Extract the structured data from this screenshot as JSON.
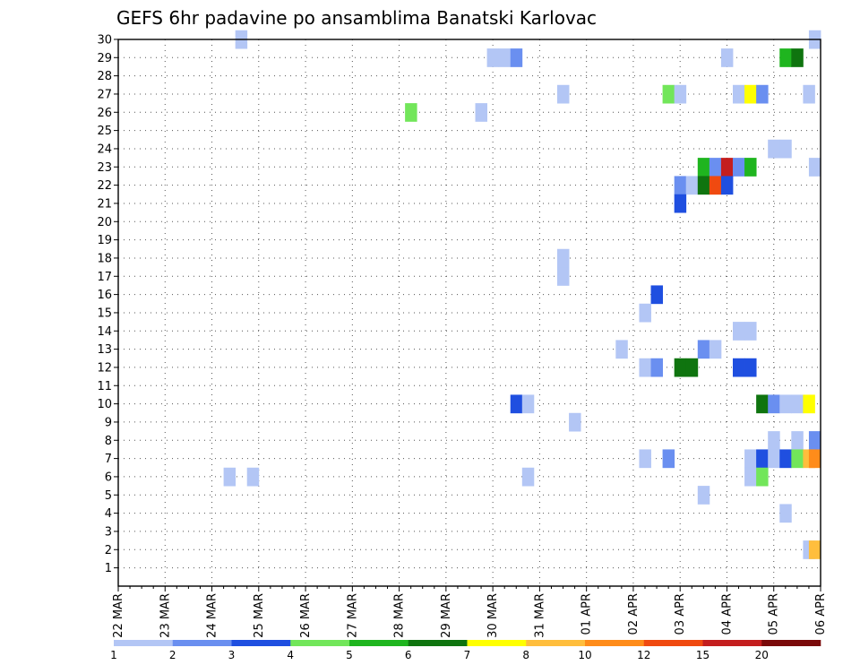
{
  "chart_data": {
    "type": "heatmap",
    "title": "GEFS 6hr padavine po ansamblima Banatski Karlovac",
    "members": [
      1,
      2,
      3,
      4,
      5,
      6,
      7,
      8,
      9,
      10,
      11,
      12,
      13,
      14,
      15,
      16,
      17,
      18,
      19,
      20,
      21,
      22,
      23,
      24,
      25,
      26,
      27,
      28,
      29,
      30
    ],
    "x_tick_labels": [
      "22 MAR",
      "23 MAR",
      "24 MAR",
      "25 MAR",
      "26 MAR",
      "27 MAR",
      "28 MAR",
      "29 MAR",
      "30 MAR",
      "31 MAR",
      "01 APR",
      "02 APR",
      "03 APR",
      "04 APR",
      "05 APR",
      "06 APR"
    ],
    "x_range_steps": [
      0,
      60
    ],
    "steps_per_day": 4,
    "legend_ticks": [
      "1",
      "2",
      "3",
      "4",
      "5",
      "6",
      "7",
      "8",
      "10",
      "12",
      "15",
      "20"
    ],
    "legend_colors": [
      "#b3c6f5",
      "#6a8ff0",
      "#1f4fe0",
      "#72e65a",
      "#1fb51f",
      "#0f740f",
      "#ffff00",
      "#ffbe3d",
      "#ff8c1a",
      "#f04a10",
      "#c41e1e",
      "#7a0a0a"
    ],
    "cells": [
      {
        "member": 30,
        "step": 10.5,
        "cls": 0
      },
      {
        "member": 30,
        "step": 59.5,
        "cls": 0
      },
      {
        "member": 29,
        "step": 32,
        "cls": 0
      },
      {
        "member": 29,
        "step": 33,
        "cls": 0
      },
      {
        "member": 29,
        "step": 34,
        "cls": 1
      },
      {
        "member": 29,
        "step": 52,
        "cls": 0
      },
      {
        "member": 29,
        "step": 57,
        "cls": 4
      },
      {
        "member": 29,
        "step": 58,
        "cls": 5
      },
      {
        "member": 27,
        "step": 38,
        "cls": 0
      },
      {
        "member": 27,
        "step": 47,
        "cls": 3
      },
      {
        "member": 27,
        "step": 48,
        "cls": 0
      },
      {
        "member": 27,
        "step": 53,
        "cls": 0
      },
      {
        "member": 27,
        "step": 54,
        "cls": 6
      },
      {
        "member": 27,
        "step": 55,
        "cls": 1
      },
      {
        "member": 27,
        "step": 59,
        "cls": 0
      },
      {
        "member": 26,
        "step": 25,
        "cls": 3
      },
      {
        "member": 26,
        "step": 31,
        "cls": 0
      },
      {
        "member": 24,
        "step": 56,
        "cls": 0
      },
      {
        "member": 24,
        "step": 57,
        "cls": 0
      },
      {
        "member": 23,
        "step": 50,
        "cls": 4
      },
      {
        "member": 23,
        "step": 51,
        "cls": 1
      },
      {
        "member": 23,
        "step": 52,
        "cls": 10
      },
      {
        "member": 23,
        "step": 53,
        "cls": 1
      },
      {
        "member": 23,
        "step": 54,
        "cls": 4
      },
      {
        "member": 23,
        "step": 59.5,
        "cls": 0
      },
      {
        "member": 22,
        "step": 48,
        "cls": 1
      },
      {
        "member": 22,
        "step": 49,
        "cls": 0
      },
      {
        "member": 22,
        "step": 50,
        "cls": 5
      },
      {
        "member": 22,
        "step": 51,
        "cls": 9
      },
      {
        "member": 22,
        "step": 52,
        "cls": 2
      },
      {
        "member": 21,
        "step": 48,
        "cls": 2
      },
      {
        "member": 18,
        "step": 38,
        "cls": 0
      },
      {
        "member": 17,
        "step": 38,
        "cls": 0
      },
      {
        "member": 16,
        "step": 46,
        "cls": 2
      },
      {
        "member": 15,
        "step": 45,
        "cls": 0
      },
      {
        "member": 14,
        "step": 53,
        "cls": 0
      },
      {
        "member": 14,
        "step": 54,
        "cls": 0
      },
      {
        "member": 13,
        "step": 43,
        "cls": 0
      },
      {
        "member": 13,
        "step": 50,
        "cls": 1
      },
      {
        "member": 13,
        "step": 51,
        "cls": 0
      },
      {
        "member": 12,
        "step": 45,
        "cls": 0
      },
      {
        "member": 12,
        "step": 46,
        "cls": 1
      },
      {
        "member": 12,
        "step": 48,
        "cls": 5
      },
      {
        "member": 12,
        "step": 49,
        "cls": 5
      },
      {
        "member": 12,
        "step": 53,
        "cls": 2
      },
      {
        "member": 12,
        "step": 54,
        "cls": 2
      },
      {
        "member": 10,
        "step": 34,
        "cls": 2
      },
      {
        "member": 10,
        "step": 35,
        "cls": 0
      },
      {
        "member": 10,
        "step": 55,
        "cls": 5
      },
      {
        "member": 10,
        "step": 56,
        "cls": 1
      },
      {
        "member": 10,
        "step": 57,
        "cls": 0
      },
      {
        "member": 10,
        "step": 58,
        "cls": 0
      },
      {
        "member": 10,
        "step": 59,
        "cls": 6
      },
      {
        "member": 9,
        "step": 39,
        "cls": 0
      },
      {
        "member": 8,
        "step": 56,
        "cls": 0
      },
      {
        "member": 8,
        "step": 58,
        "cls": 0
      },
      {
        "member": 8,
        "step": 59.5,
        "cls": 1
      },
      {
        "member": 7,
        "step": 45,
        "cls": 0
      },
      {
        "member": 7,
        "step": 47,
        "cls": 1
      },
      {
        "member": 7,
        "step": 54,
        "cls": 0
      },
      {
        "member": 7,
        "step": 55,
        "cls": 2
      },
      {
        "member": 7,
        "step": 56,
        "cls": 0
      },
      {
        "member": 7,
        "step": 57,
        "cls": 2
      },
      {
        "member": 7,
        "step": 58,
        "cls": 3
      },
      {
        "member": 7,
        "step": 59,
        "cls": 7
      },
      {
        "member": 7,
        "step": 59.5,
        "cls": 8
      },
      {
        "member": 6,
        "step": 9.5,
        "cls": 0
      },
      {
        "member": 6,
        "step": 11.5,
        "cls": 0
      },
      {
        "member": 6,
        "step": 35,
        "cls": 0
      },
      {
        "member": 6,
        "step": 54,
        "cls": 0
      },
      {
        "member": 6,
        "step": 55,
        "cls": 3
      },
      {
        "member": 5,
        "step": 50,
        "cls": 0
      },
      {
        "member": 4,
        "step": 57,
        "cls": 0
      },
      {
        "member": 2,
        "step": 59,
        "cls": 0
      },
      {
        "member": 2,
        "step": 59.5,
        "cls": 7
      }
    ]
  }
}
